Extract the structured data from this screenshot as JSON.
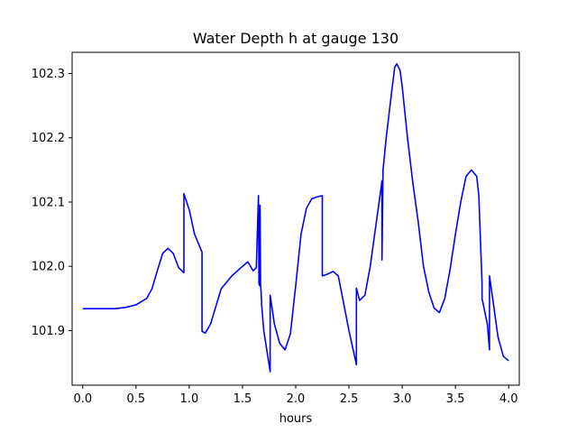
{
  "chart_data": {
    "type": "line",
    "title": "Water Depth h at gauge 130",
    "xlabel": "hours",
    "ylabel": "",
    "xlim": [
      -0.1,
      4.1
    ],
    "ylim": [
      101.815,
      102.333
    ],
    "xticks": [
      0.0,
      0.5,
      1.0,
      1.5,
      2.0,
      2.5,
      3.0,
      3.5,
      4.0
    ],
    "xtick_labels": [
      "0.0",
      "0.5",
      "1.0",
      "1.5",
      "2.0",
      "2.5",
      "3.0",
      "3.5",
      "4.0"
    ],
    "yticks": [
      101.9,
      102.0,
      102.1,
      102.2,
      102.3
    ],
    "ytick_labels": [
      "101.9",
      "102.0",
      "102.1",
      "102.2",
      "102.3"
    ],
    "grid": false,
    "legend": "none",
    "series": [
      {
        "color": "#0000ff",
        "x": [
          0.0,
          0.3,
          0.4,
          0.5,
          0.6,
          0.65,
          0.7,
          0.75,
          0.8,
          0.85,
          0.9,
          0.95,
          0.95,
          1.0,
          1.05,
          1.12,
          1.12,
          1.15,
          1.2,
          1.3,
          1.4,
          1.5,
          1.55,
          1.6,
          1.63,
          1.65,
          1.655,
          1.66,
          1.665,
          1.67,
          1.675,
          1.68,
          1.7,
          1.76,
          1.76,
          1.8,
          1.85,
          1.9,
          1.95,
          2.0,
          2.05,
          2.1,
          2.15,
          2.2,
          2.25,
          2.25,
          2.3,
          2.35,
          2.4,
          2.5,
          2.57,
          2.57,
          2.6,
          2.65,
          2.7,
          2.75,
          2.8,
          2.81,
          2.81,
          2.82,
          2.85,
          2.9,
          2.93,
          2.95,
          2.98,
          3.0,
          3.05,
          3.1,
          3.15,
          3.2,
          3.25,
          3.3,
          3.35,
          3.4,
          3.45,
          3.5,
          3.55,
          3.6,
          3.65,
          3.7,
          3.72,
          3.75,
          3.75,
          3.8,
          3.82,
          3.82,
          3.85,
          3.9,
          3.95,
          4.0
        ],
        "y": [
          101.934,
          101.934,
          101.936,
          101.94,
          101.95,
          101.965,
          101.993,
          102.02,
          102.028,
          102.02,
          101.998,
          101.99,
          102.113,
          102.088,
          102.05,
          102.022,
          101.899,
          101.896,
          101.91,
          101.965,
          101.985,
          102.0,
          102.007,
          101.993,
          101.998,
          102.11,
          101.973,
          101.97,
          102.095,
          101.97,
          101.96,
          101.94,
          101.9,
          101.836,
          101.955,
          101.91,
          101.88,
          101.87,
          101.895,
          101.97,
          102.05,
          102.09,
          102.105,
          102.108,
          102.11,
          101.985,
          101.988,
          101.992,
          101.985,
          101.9,
          101.847,
          101.966,
          101.947,
          101.955,
          102.0,
          102.06,
          102.12,
          102.133,
          102.01,
          102.15,
          102.2,
          102.27,
          102.31,
          102.315,
          102.305,
          102.28,
          102.2,
          102.13,
          102.07,
          102.0,
          101.96,
          101.935,
          101.928,
          101.95,
          101.995,
          102.05,
          102.1,
          102.14,
          102.15,
          102.14,
          102.11,
          101.973,
          101.95,
          101.91,
          101.87,
          101.985,
          101.95,
          101.89,
          101.86,
          101.853
        ]
      }
    ]
  }
}
